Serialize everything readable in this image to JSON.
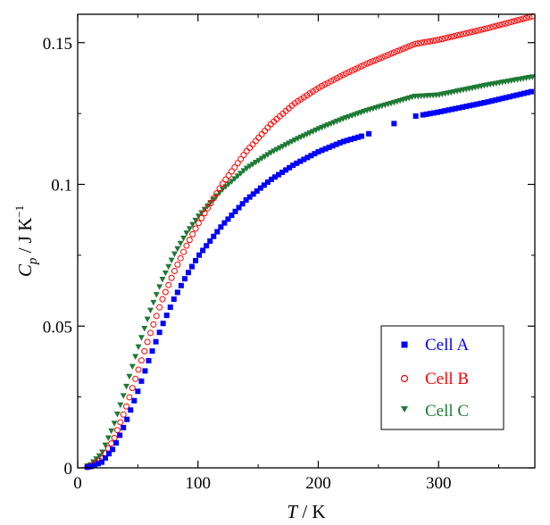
{
  "chart_data": {
    "type": "scatter",
    "title": "",
    "xlabel": {
      "var": "T",
      "unit": " / K"
    },
    "ylabel": {
      "var": "C",
      "sub": "p",
      "unit": " / J K",
      "sup": "−1"
    },
    "xlim": [
      0,
      380
    ],
    "ylim": [
      0,
      0.16
    ],
    "xticks": [
      0,
      100,
      200,
      300
    ],
    "xtick_labels": [
      "0",
      "100",
      "200",
      "300"
    ],
    "yticks": [
      0,
      0.05,
      0.1,
      0.15
    ],
    "ytick_labels": [
      "0",
      "0.05",
      "0.1",
      "0.15"
    ],
    "grid": false,
    "legend_position": "bottom-right",
    "series": [
      {
        "name": "Cell A",
        "marker": "square",
        "color": "#0000ff",
        "x_start": 8,
        "x_end": 378,
        "x_step": 3,
        "gap": [
          237,
          287
        ],
        "curve": [
          [
            0,
            0
          ],
          [
            10,
            0.0003
          ],
          [
            20,
            0.002
          ],
          [
            30,
            0.007
          ],
          [
            40,
            0.016
          ],
          [
            50,
            0.027
          ],
          [
            60,
            0.039
          ],
          [
            70,
            0.05
          ],
          [
            80,
            0.0595
          ],
          [
            90,
            0.0675
          ],
          [
            100,
            0.0745
          ],
          [
            120,
            0.0855
          ],
          [
            140,
            0.0945
          ],
          [
            160,
            0.1015
          ],
          [
            180,
            0.107
          ],
          [
            200,
            0.1115
          ],
          [
            220,
            0.115
          ],
          [
            240,
            0.1175
          ],
          [
            260,
            0.121
          ],
          [
            280,
            0.124
          ],
          [
            300,
            0.1255
          ],
          [
            340,
            0.129
          ],
          [
            380,
            0.133
          ]
        ]
      },
      {
        "name": "Cell B",
        "marker": "circle",
        "color": "#ff0000",
        "x_start": 8,
        "x_end": 378,
        "x_step": 2.5,
        "curve": [
          [
            0,
            0
          ],
          [
            10,
            0.0004
          ],
          [
            20,
            0.003
          ],
          [
            30,
            0.01
          ],
          [
            40,
            0.021
          ],
          [
            50,
            0.034
          ],
          [
            60,
            0.047
          ],
          [
            70,
            0.059
          ],
          [
            80,
            0.069
          ],
          [
            90,
            0.078
          ],
          [
            100,
            0.086
          ],
          [
            120,
            0.1
          ],
          [
            140,
            0.1115
          ],
          [
            160,
            0.121
          ],
          [
            180,
            0.1285
          ],
          [
            200,
            0.134
          ],
          [
            220,
            0.1385
          ],
          [
            240,
            0.1425
          ],
          [
            260,
            0.146
          ],
          [
            280,
            0.1495
          ],
          [
            300,
            0.151
          ],
          [
            340,
            0.155
          ],
          [
            380,
            0.1595
          ]
        ]
      },
      {
        "name": "Cell C",
        "marker": "triangle-down",
        "color": "#1e7a34",
        "x_start": 8,
        "x_end": 378,
        "x_step": 2.5,
        "curve": [
          [
            0,
            0
          ],
          [
            10,
            0.0008
          ],
          [
            20,
            0.005
          ],
          [
            30,
            0.015
          ],
          [
            40,
            0.028
          ],
          [
            50,
            0.042
          ],
          [
            60,
            0.055
          ],
          [
            70,
            0.066
          ],
          [
            80,
            0.075
          ],
          [
            90,
            0.0825
          ],
          [
            100,
            0.0885
          ],
          [
            120,
            0.098
          ],
          [
            140,
            0.1055
          ],
          [
            160,
            0.111
          ],
          [
            180,
            0.1155
          ],
          [
            200,
            0.1195
          ],
          [
            220,
            0.123
          ],
          [
            240,
            0.126
          ],
          [
            260,
            0.1285
          ],
          [
            280,
            0.131
          ],
          [
            300,
            0.1315
          ],
          [
            340,
            0.135
          ],
          [
            380,
            0.138
          ]
        ]
      }
    ]
  }
}
